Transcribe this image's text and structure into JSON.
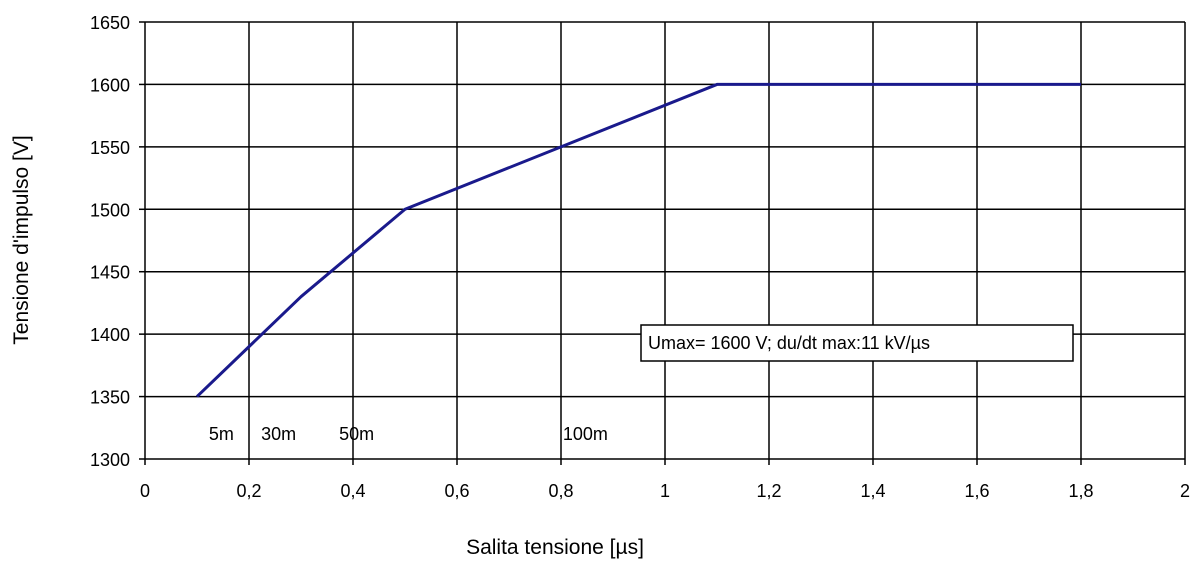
{
  "chart_data": {
    "type": "line",
    "title": "",
    "xlabel": "Salita tensione [µs]",
    "ylabel": "Tensione d'impulso [V]",
    "xlim": [
      0,
      2
    ],
    "ylim": [
      1300,
      1650
    ],
    "x_ticks": [
      0,
      0.2,
      0.4,
      0.6,
      0.8,
      1,
      1.2,
      1.4,
      1.6,
      1.8,
      2
    ],
    "x_tick_labels": [
      "0",
      "0,2",
      "0,4",
      "0,6",
      "0,8",
      "1",
      "1,2",
      "1,4",
      "1,6",
      "1,8",
      "2"
    ],
    "y_ticks": [
      1300,
      1350,
      1400,
      1450,
      1500,
      1550,
      1600,
      1650
    ],
    "y_tick_labels": [
      "1300",
      "1350",
      "1400",
      "1450",
      "1500",
      "1550",
      "1600",
      "1650"
    ],
    "grid": true,
    "series": [
      {
        "color": "#1a1a8c",
        "x": [
          0.1,
          0.3,
          0.5,
          0.8,
          1.1,
          1.8
        ],
        "y": [
          1350,
          1430,
          1500,
          1550,
          1600,
          1600
        ]
      }
    ],
    "annotations": [
      {
        "text": "5m",
        "x": 0.12
      },
      {
        "text": "30m",
        "x": 0.23
      },
      {
        "text": "50m",
        "x": 0.38
      },
      {
        "text": "100m",
        "x": 0.82
      }
    ],
    "legend_text": "Umax= 1600 V; du/dt max:11 kV/µs"
  }
}
